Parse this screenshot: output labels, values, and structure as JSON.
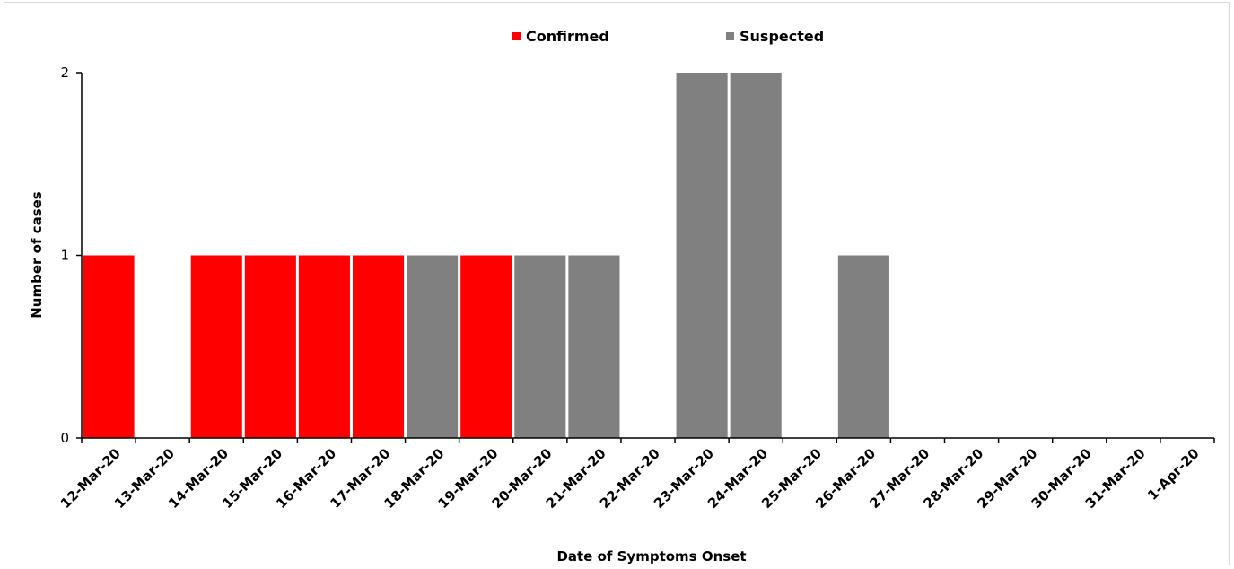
{
  "chart_data": {
    "type": "bar",
    "stacked": true,
    "title": "",
    "xlabel": "Date of Symptoms Onset",
    "ylabel": "Number of cases",
    "ylim": [
      0,
      2
    ],
    "yticks": [
      "0",
      "1",
      "2"
    ],
    "grid": false,
    "legend_position": "top-center",
    "categories": [
      "12-Mar-20",
      "13-Mar-20",
      "14-Mar-20",
      "15-Mar-20",
      "16-Mar-20",
      "17-Mar-20",
      "18-Mar-20",
      "19-Mar-20",
      "20-Mar-20",
      "21-Mar-20",
      "22-Mar-20",
      "23-Mar-20",
      "24-Mar-20",
      "25-Mar-20",
      "26-Mar-20",
      "27-Mar-20",
      "28-Mar-20",
      "29-Mar-20",
      "30-Mar-20",
      "31-Mar-20",
      "1-Apr-20"
    ],
    "series": [
      {
        "name": "Confirmed",
        "color": "#ff0000",
        "values": [
          1,
          0,
          1,
          1,
          1,
          1,
          0,
          1,
          0,
          0,
          0,
          0,
          0,
          0,
          0,
          0,
          0,
          0,
          0,
          0,
          0
        ]
      },
      {
        "name": "Suspected",
        "color": "#808080",
        "values": [
          0,
          0,
          0,
          0,
          0,
          0,
          1,
          0,
          1,
          1,
          0,
          2,
          2,
          0,
          1,
          0,
          0,
          0,
          0,
          0,
          0
        ]
      }
    ]
  }
}
